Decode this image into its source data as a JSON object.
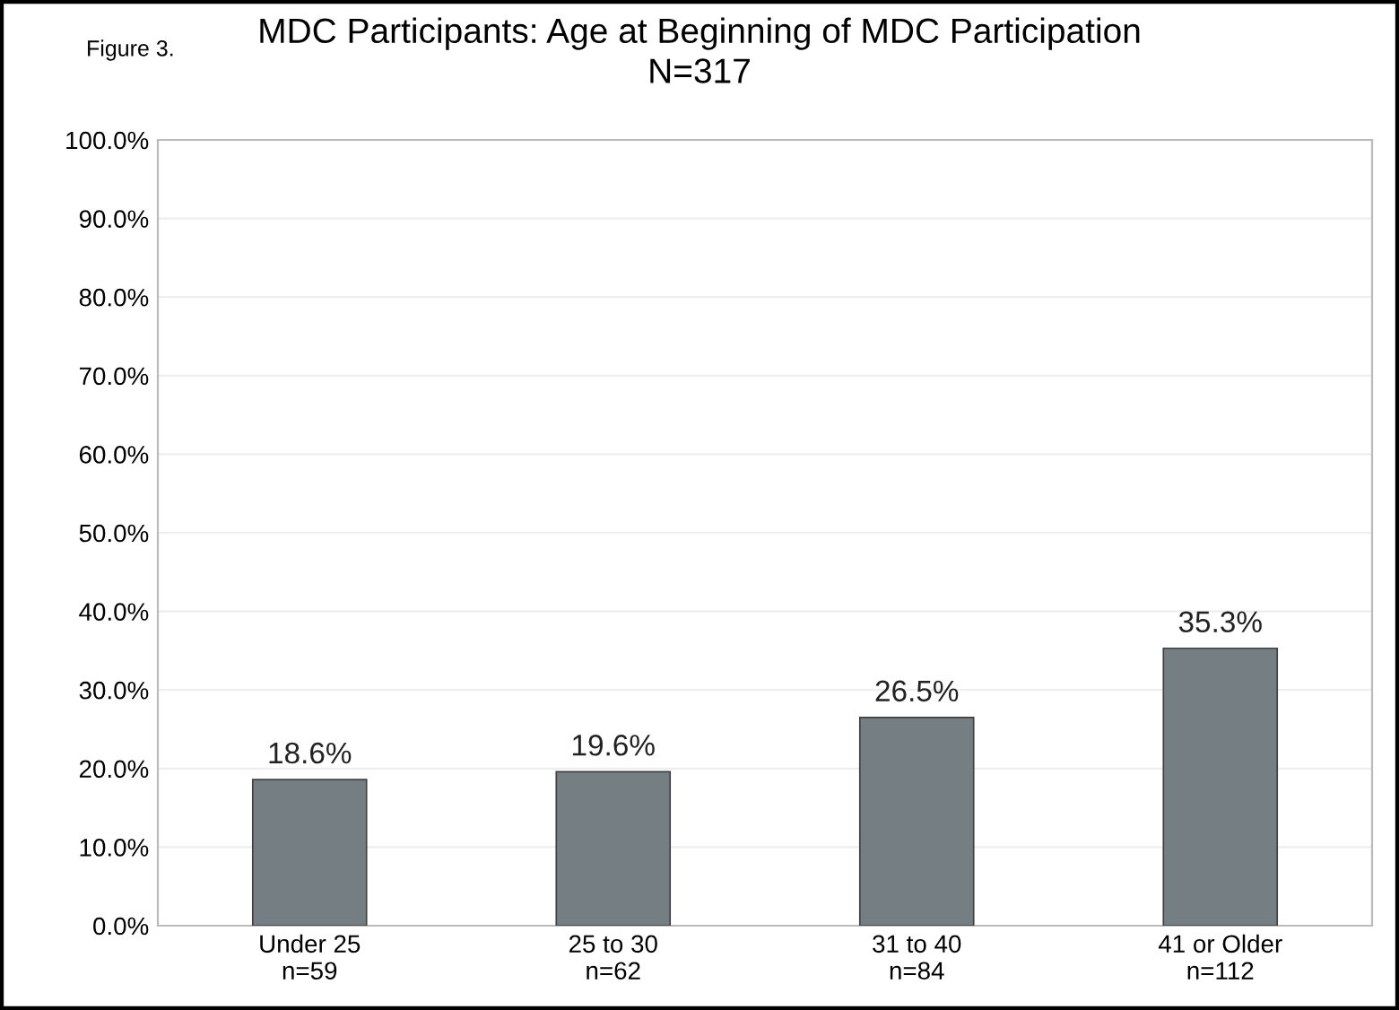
{
  "chart_data": {
    "type": "bar",
    "title": "MDC Participants: Age at Beginning of MDC Participation\nN=317",
    "annotations": [
      "Figure 3."
    ],
    "categories": [
      "Under 25\nn=59",
      "25 to 30\nn=62",
      "31 to 40\nn=84",
      "41 or Older\nn=112"
    ],
    "values": [
      18.6,
      19.6,
      26.5,
      35.3
    ],
    "value_labels": [
      "18.6%",
      "19.6%",
      "26.5%",
      "35.3%"
    ],
    "color": "#757f83",
    "ylim": [
      0,
      100
    ],
    "yticks": [
      {
        "value": 0,
        "label": "0.0%"
      },
      {
        "value": 10,
        "label": "10.0%"
      },
      {
        "value": 20,
        "label": "20.0%"
      },
      {
        "value": 30,
        "label": "30.0%"
      },
      {
        "value": 40,
        "label": "40.0%"
      },
      {
        "value": 50,
        "label": "50.0%"
      },
      {
        "value": 60,
        "label": "60.0%"
      },
      {
        "value": 70,
        "label": "70.0%"
      },
      {
        "value": 80,
        "label": "80.0%"
      },
      {
        "value": 90,
        "label": "90.0%"
      },
      {
        "value": 100,
        "label": "100.0%"
      }
    ],
    "grid": "y",
    "legend": false
  }
}
